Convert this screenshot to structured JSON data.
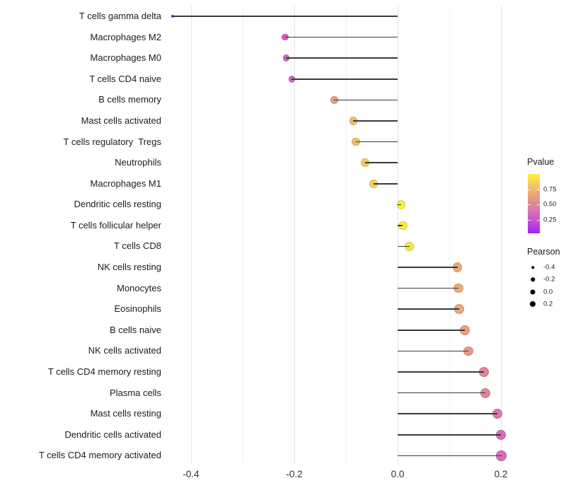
{
  "chart_data": {
    "type": "scatter",
    "style": "lollipop",
    "orientation": "horizontal",
    "title": "",
    "xlabel": "",
    "ylabel": "",
    "xlim": [
      -0.4466,
      0.2466
    ],
    "baseline_x": 0,
    "x_tick_values": [
      -0.4,
      -0.2,
      0.0,
      0.2
    ],
    "x_tick_labels": [
      "-0.4",
      "-0.2",
      "0.0",
      "0.2"
    ],
    "x_minor_gridlines": [
      -0.3,
      -0.1,
      0.1
    ],
    "grid": "vertical major and minor gridlines only, no axis lines, white background",
    "categories": [
      "T cells gamma delta",
      "Macrophages M2",
      "Macrophages M0",
      "T cells CD4 naive",
      "B cells memory",
      "Mast cells activated",
      "T cells regulatory  Tregs",
      "Neutrophils",
      "Macrophages M1",
      "Dendritic cells resting",
      "T cells follicular helper",
      "T cells CD8",
      "NK cells resting",
      "Monocytes",
      "Eosinophils",
      "B cells naive",
      "NK cells activated",
      "T cells CD4 memory resting",
      "Plasma cells",
      "Mast cells resting",
      "Dendritic cells activated",
      "T cells CD4 memory activated"
    ],
    "series": [
      {
        "name": "Pearson",
        "values": [
          -0.436,
          -0.218,
          -0.216,
          -0.205,
          -0.123,
          -0.086,
          -0.081,
          -0.063,
          -0.047,
          0.007,
          0.01,
          0.023,
          0.116,
          0.118,
          0.119,
          0.13,
          0.137,
          0.167,
          0.17,
          0.193,
          0.2,
          0.201
        ]
      },
      {
        "name": "Pvalue (color-estimated)",
        "values": [
          0.03,
          0.3,
          0.3,
          0.32,
          0.62,
          0.76,
          0.77,
          0.83,
          0.86,
          0.97,
          0.96,
          0.93,
          0.68,
          0.68,
          0.67,
          0.63,
          0.58,
          0.48,
          0.48,
          0.4,
          0.35,
          0.35
        ]
      }
    ],
    "color_legend": {
      "title": "Pvalue",
      "tick_labels": [
        "0.75",
        "0.50",
        "0.25"
      ],
      "tick_values": [
        0.75,
        0.5,
        0.25
      ],
      "bar_range": [
        0.03,
        1.0
      ]
    },
    "size_legend": {
      "title": "Pearson",
      "entry_labels": [
        "-0.4",
        "-0.2",
        "0.0",
        "0.2"
      ],
      "entry_values": [
        -0.4,
        -0.2,
        0.0,
        0.2
      ]
    }
  },
  "style": {
    "background": "#FFFFFF",
    "gradient_stops": [
      "#A020F0",
      "#C44FD6",
      "#DA78AB",
      "#E79B85",
      "#F0C468",
      "#FAF33C"
    ],
    "gradient_low": "#A020F0",
    "gradient_high": "#FAF33C",
    "stem_color": "#3A3A3A",
    "grid_major_color": "#E4E4E4",
    "grid_minor_color": "#F1F1F1",
    "y_label_color": "#1C1C1C",
    "x_tick_color": "#303030",
    "legend_text_color": "#1F1F1F"
  }
}
